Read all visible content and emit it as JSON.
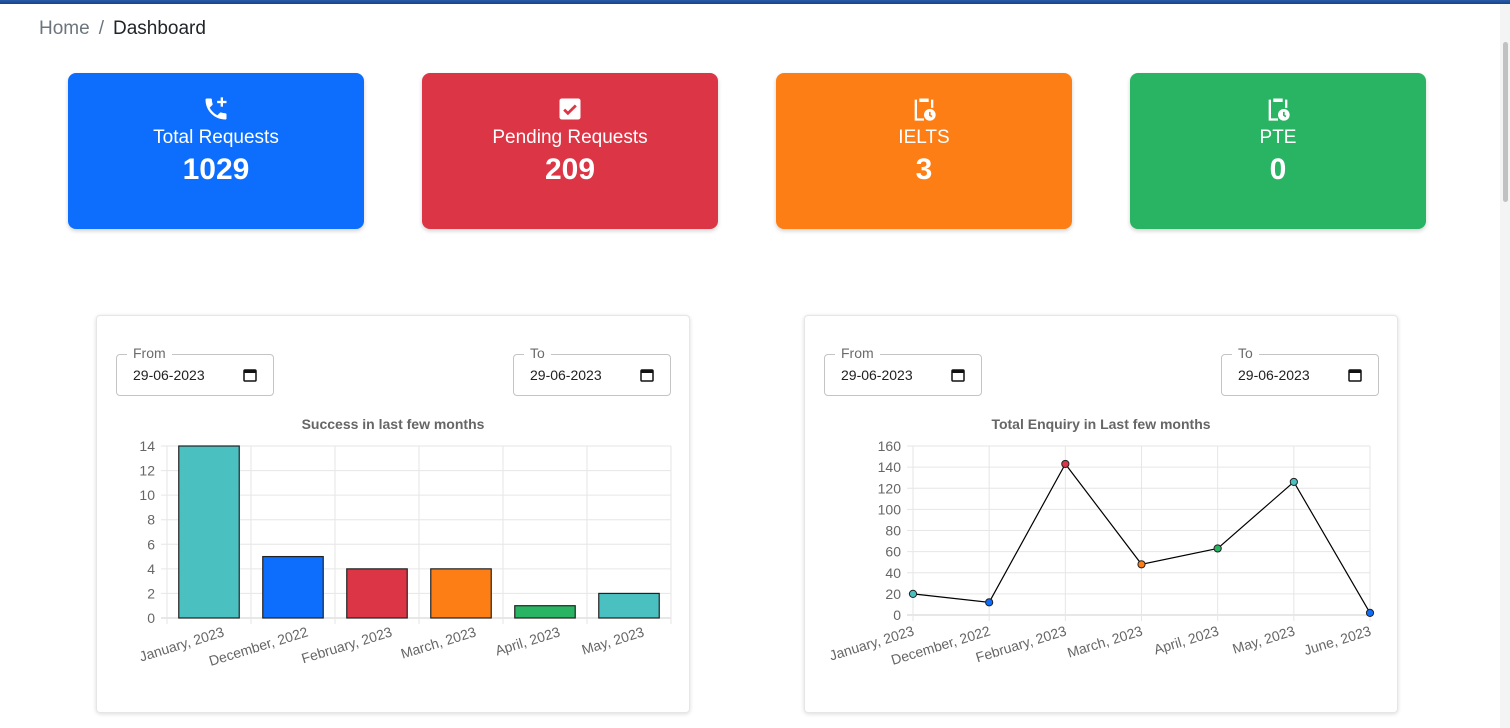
{
  "breadcrumb": {
    "home": "Home",
    "separator": "/",
    "current": "Dashboard"
  },
  "cards": [
    {
      "label": "Total Requests",
      "value": "1029",
      "icon": "phone-plus-icon",
      "color": "#0d6efd"
    },
    {
      "label": "Pending Requests",
      "value": "209",
      "icon": "checkbox-checked-icon",
      "color": "#dc3545"
    },
    {
      "label": "IELTS",
      "value": "3",
      "icon": "clipboard-clock-icon",
      "color": "#fd7e14"
    },
    {
      "label": "PTE",
      "value": "0",
      "icon": "clipboard-clock-icon",
      "color": "#28b463"
    }
  ],
  "success_panel": {
    "from_label": "From",
    "from_value": "29-06-2023",
    "to_label": "To",
    "to_value": "29-06-2023"
  },
  "enquiry_panel": {
    "from_label": "From",
    "from_value": "29-06-2023",
    "to_label": "To",
    "to_value": "29-06-2023"
  },
  "chart_data": [
    {
      "type": "bar",
      "title": "Success in last few months",
      "categories": [
        "January, 2023",
        "December, 2022",
        "February, 2023",
        "March, 2023",
        "April, 2023",
        "May, 2023"
      ],
      "values": [
        14,
        5,
        4,
        4,
        1,
        2
      ],
      "colors": [
        "#4bc0c0",
        "#0d6efd",
        "#dc3545",
        "#fd7e14",
        "#28b463",
        "#4bc0c0"
      ],
      "ylim": [
        0,
        14
      ],
      "yticks": [
        0,
        2,
        4,
        6,
        8,
        10,
        12,
        14
      ],
      "grid": true,
      "legend": "none"
    },
    {
      "type": "line",
      "title": "Total Enquiry in Last few months",
      "categories": [
        "January, 2023",
        "December, 2022",
        "February, 2023",
        "March, 2023",
        "April, 2023",
        "May, 2023",
        "June, 2023"
      ],
      "values": [
        20,
        12,
        143,
        48,
        63,
        126,
        2
      ],
      "point_colors": [
        "#4bc0c0",
        "#0d6efd",
        "#dc3545",
        "#fd7e14",
        "#28b463",
        "#4bc0c0",
        "#0d6efd"
      ],
      "line_color": "#000000",
      "ylim": [
        0,
        160
      ],
      "yticks": [
        0,
        20,
        40,
        60,
        80,
        100,
        120,
        140,
        160
      ],
      "grid": true,
      "legend": "none"
    }
  ]
}
